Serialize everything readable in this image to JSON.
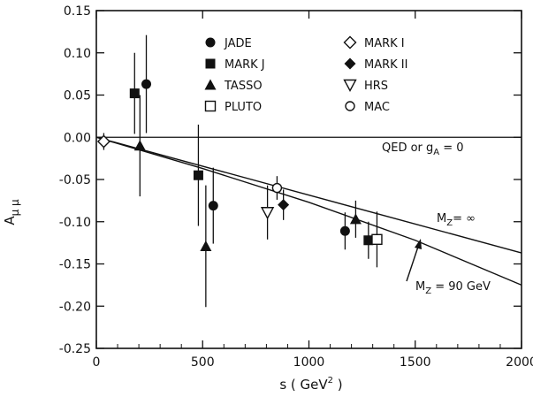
{
  "chart_data": {
    "type": "scatter",
    "xlabel": {
      "main": "s ( GeV",
      "sup": "2",
      "tail": " )"
    },
    "ylabel": {
      "main": "A",
      "sub": "μ μ"
    },
    "xlim": [
      0,
      2000
    ],
    "ylim": [
      -0.25,
      0.15
    ],
    "xticks": [
      0,
      500,
      1000,
      1500,
      2000
    ],
    "xtick_labels": [
      "0",
      "500",
      "1000",
      "1500",
      "2000"
    ],
    "yticks": [
      0.15,
      0.1,
      0.05,
      0.0,
      -0.05,
      -0.1,
      -0.15,
      -0.2,
      -0.25
    ],
    "ytick_labels": [
      "0.15",
      "0.10",
      "0.05",
      "0.00",
      "-0.05",
      "-0.10",
      "-0.15",
      "-0.20",
      "-0.25"
    ],
    "grid": false,
    "legend": {
      "placement": "top-center",
      "entries": [
        {
          "label": "JADE",
          "marker": "filled-circle"
        },
        {
          "label": "MARK J",
          "marker": "filled-square"
        },
        {
          "label": "TASSO",
          "marker": "filled-triangle"
        },
        {
          "label": "PLUTO",
          "marker": "open-square"
        },
        {
          "label": "MARK I",
          "marker": "open-diamond"
        },
        {
          "label": "MARK II",
          "marker": "filled-diamond"
        },
        {
          "label": "HRS",
          "marker": "open-triangle-down"
        },
        {
          "label": "MAC",
          "marker": "open-circle"
        }
      ]
    },
    "series": [
      {
        "name": "JADE",
        "marker": "filled-circle",
        "points": [
          {
            "x": 235,
            "y": 0.063,
            "err": 0.058
          },
          {
            "x": 550,
            "y": -0.081,
            "err": 0.045
          },
          {
            "x": 1170,
            "y": -0.111,
            "err": 0.022
          }
        ]
      },
      {
        "name": "MARK J",
        "marker": "filled-square",
        "points": [
          {
            "x": 180,
            "y": 0.052,
            "err": 0.048
          },
          {
            "x": 480,
            "y": -0.045,
            "err": 0.06
          },
          {
            "x": 1280,
            "y": -0.122,
            "err": 0.022
          }
        ]
      },
      {
        "name": "TASSO",
        "marker": "filled-triangle",
        "points": [
          {
            "x": 205,
            "y": -0.01,
            "err": 0.06
          },
          {
            "x": 515,
            "y": -0.129,
            "err": 0.072
          },
          {
            "x": 1220,
            "y": -0.097,
            "err": 0.022
          }
        ]
      },
      {
        "name": "PLUTO",
        "marker": "open-square",
        "points": [
          {
            "x": 1320,
            "y": -0.121,
            "err": 0.033
          }
        ]
      },
      {
        "name": "MARK I",
        "marker": "open-diamond",
        "points": [
          {
            "x": 35,
            "y": -0.005,
            "err": 0.01
          }
        ]
      },
      {
        "name": "MARK II",
        "marker": "filled-diamond",
        "points": [
          {
            "x": 880,
            "y": -0.08,
            "err": 0.018
          }
        ]
      },
      {
        "name": "HRS",
        "marker": "open-triangle-down",
        "points": [
          {
            "x": 805,
            "y": -0.089,
            "err": 0.032
          }
        ]
      },
      {
        "name": "MAC",
        "marker": "open-circle",
        "points": [
          {
            "x": 850,
            "y": -0.06,
            "err": 0.014
          }
        ]
      }
    ],
    "curves": [
      {
        "name": "QED or gA = 0",
        "x": [
          0,
          2000
        ],
        "y": [
          0.0,
          0.0
        ]
      },
      {
        "name": "MZ = ∞",
        "x": [
          0,
          2000
        ],
        "y": [
          0.0,
          -0.137
        ]
      },
      {
        "name": "MZ = 90 GeV",
        "x": [
          0,
          500,
          1000,
          1500,
          2000
        ],
        "y": [
          0.0,
          -0.037,
          -0.077,
          -0.122,
          -0.175
        ]
      }
    ],
    "annotations": [
      {
        "text": "QED or g",
        "sub": "A",
        "tail": " = 0"
      },
      {
        "text": "M",
        "sub": "Z",
        "tail": "= ∞"
      },
      {
        "text": "M",
        "sub": "Z",
        "tail": " = 90 GeV"
      }
    ]
  }
}
